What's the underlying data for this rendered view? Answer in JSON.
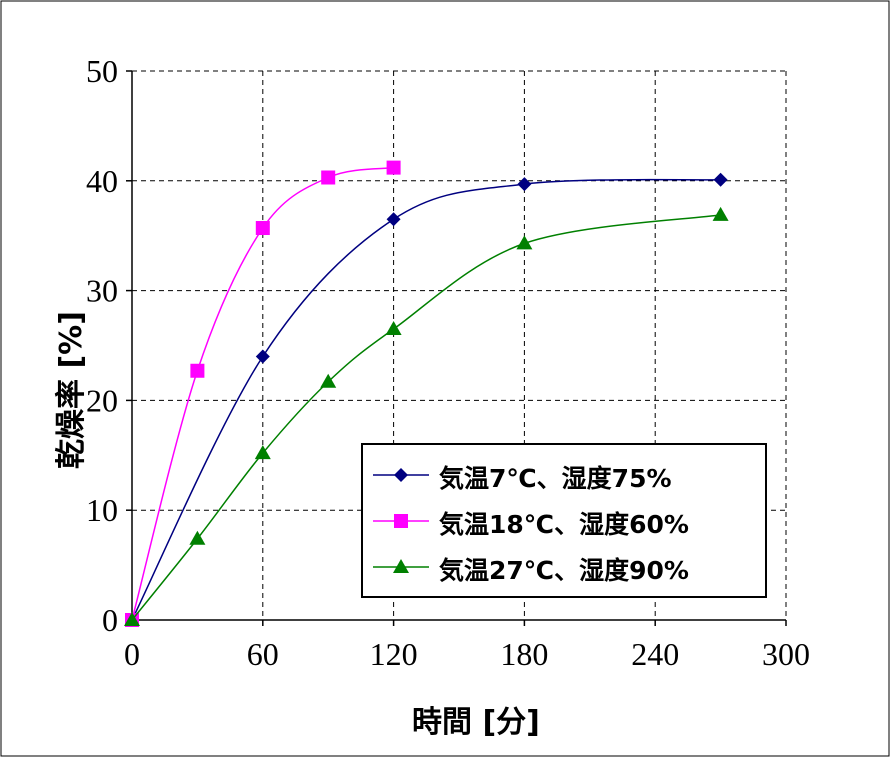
{
  "chart_data": {
    "type": "line",
    "xlabel": "時間 [分]",
    "ylabel": "乾燥率 [%]",
    "xlim": [
      0,
      300
    ],
    "ylim": [
      0,
      50
    ],
    "xticks": [
      "0",
      "60",
      "120",
      "180",
      "240",
      "300"
    ],
    "yticks": [
      "0",
      "10",
      "20",
      "30",
      "40",
      "50"
    ],
    "grid": true,
    "legend_position": "lower-right",
    "series": [
      {
        "name": "気温7℃、湿度75%",
        "color": "#000080",
        "marker": "diamond",
        "x": [
          0,
          60,
          120,
          180,
          270
        ],
        "y": [
          0,
          24.0,
          36.5,
          39.7,
          40.1
        ]
      },
      {
        "name": "気温18℃、湿度60%",
        "color": "#FF00FF",
        "marker": "square",
        "x": [
          0,
          30,
          60,
          90,
          120
        ],
        "y": [
          0,
          22.7,
          35.7,
          40.3,
          41.2
        ]
      },
      {
        "name": "気温27℃、湿度90%",
        "color": "#008000",
        "marker": "triangle",
        "x": [
          0,
          30,
          60,
          90,
          120,
          180,
          270
        ],
        "y": [
          0,
          7.4,
          15.2,
          21.7,
          26.5,
          34.3,
          36.9
        ]
      }
    ]
  }
}
